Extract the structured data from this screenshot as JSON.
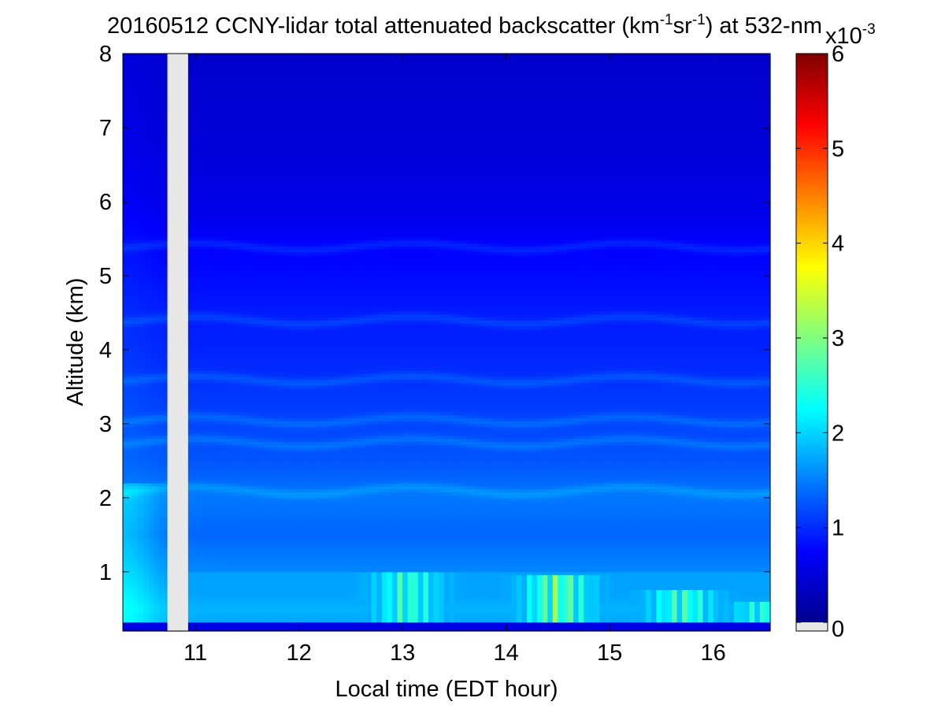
{
  "chart_data": {
    "type": "heatmap",
    "title": {
      "main": "20160512 CCNY-lidar total attenuated backscatter (km",
      "sup1": "-1",
      "mid": "sr",
      "sup2": "-1",
      "tail": ") at 532-nm"
    },
    "xlabel": "Local time (EDT hour)",
    "ylabel": "Altitude (km)",
    "xlim": [
      10.3,
      16.55
    ],
    "ylim": [
      0.2,
      8
    ],
    "xticks": [
      11,
      12,
      13,
      14,
      15,
      16
    ],
    "yticks": [
      1,
      2,
      3,
      4,
      5,
      6,
      7,
      8
    ],
    "missing_data_band": [
      10.73,
      10.93
    ],
    "colorbar": {
      "colormap": "jet",
      "range": [
        0,
        6
      ],
      "ticks": [
        0,
        1,
        2,
        3,
        4,
        5,
        6
      ],
      "multiplier_base": "x10",
      "multiplier_exp": "-3",
      "missing_color": "#e8e8e8"
    },
    "profile": {
      "altitude_km": [
        0.25,
        0.5,
        1.0,
        1.5,
        2.0,
        2.5,
        3.0,
        3.5,
        4.0,
        4.5,
        5.0,
        5.5,
        6.0,
        7.0,
        8.0
      ],
      "backscatter_x1e-3": [
        1.7,
        1.8,
        1.55,
        1.35,
        1.45,
        1.25,
        1.15,
        1.05,
        0.95,
        0.9,
        0.8,
        0.72,
        0.6,
        0.5,
        0.45
      ]
    },
    "features": {
      "aerosol_layer_tops": [
        2.1,
        2.75,
        3.05,
        3.6,
        4.4,
        5.4
      ],
      "boundary_layer_plumes": [
        {
          "t": 13.05,
          "top": 1.0,
          "peak": 2.8
        },
        {
          "t": 14.5,
          "top": 0.95,
          "peak": 3.3
        },
        {
          "t": 15.7,
          "top": 0.75,
          "peak": 2.9
        },
        {
          "t": 16.5,
          "top": 0.6,
          "peak": 2.7
        }
      ]
    }
  }
}
